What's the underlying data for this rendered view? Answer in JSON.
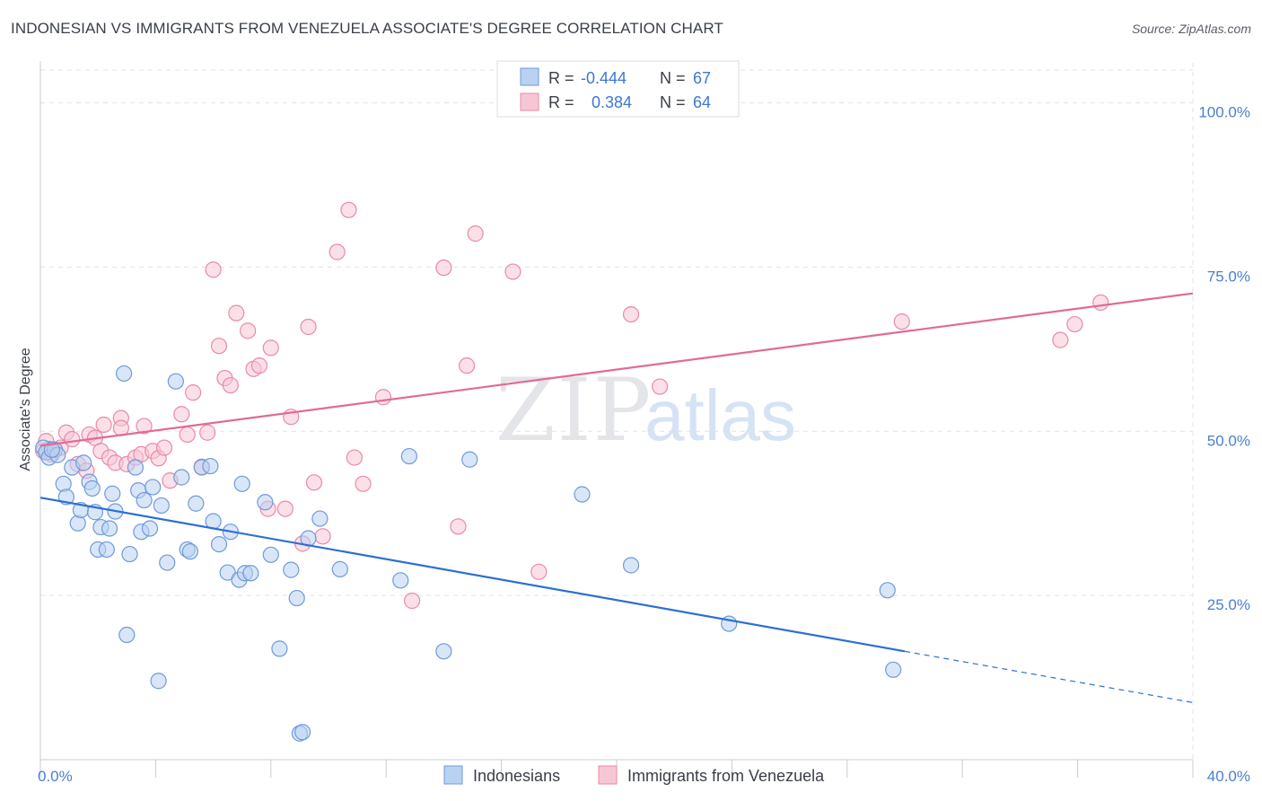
{
  "title": "INDONESIAN VS IMMIGRANTS FROM VENEZUELA ASSOCIATE'S DEGREE CORRELATION CHART",
  "source": "Source: ZipAtlas.com",
  "watermark": {
    "zip": "ZIP",
    "atlas": "atlas"
  },
  "colors": {
    "blue_fill": "#b9d2f2",
    "blue_stroke": "#6f9ad8",
    "blue_line": "#2c6fd1",
    "pink_fill": "#f7c6d5",
    "pink_stroke": "#e88aa8",
    "pink_line": "#e06b96",
    "tick_text": "#4a7fd0",
    "grid": "#dfe3e8"
  },
  "stats": [
    {
      "r_label": "R =",
      "r": "-0.444",
      "n_label": "N =",
      "n": "67",
      "color": "blue"
    },
    {
      "r_label": "R =",
      "r": "0.384",
      "n_label": "N =",
      "n": "64",
      "color": "pink"
    }
  ],
  "chart_data": {
    "type": "scatter",
    "xlabel": "",
    "ylabel": "Associate's Degree",
    "xlim": [
      0,
      40
    ],
    "ylim": [
      0,
      105
    ],
    "x_ticks": [
      {
        "v": 0,
        "label": "0.0%"
      },
      {
        "v": 40,
        "label": "40.0%"
      }
    ],
    "y_ticks": [
      {
        "v": 25,
        "label": "25.0%"
      },
      {
        "v": 50,
        "label": "50.0%"
      },
      {
        "v": 75,
        "label": "75.0%"
      },
      {
        "v": 100,
        "label": "100.0%"
      }
    ],
    "grid": true,
    "legend_position": "bottom-center",
    "series": [
      {
        "name": "Indonesians",
        "color": "blue",
        "trend": {
          "x0": 0,
          "y0": 39.9,
          "x1": 30.0,
          "y1": 16.5,
          "dash_to_x": 40.0,
          "dash_to_y": 8.7
        },
        "points": [
          [
            0.1,
            47.5
          ],
          [
            0.2,
            46.8
          ],
          [
            0.3,
            46.0
          ],
          [
            0.5,
            47.2
          ],
          [
            0.6,
            46.4
          ],
          [
            0.8,
            42.0
          ],
          [
            0.9,
            40.0
          ],
          [
            1.1,
            44.5
          ],
          [
            1.3,
            36.0
          ],
          [
            1.4,
            38.0
          ],
          [
            1.5,
            45.2
          ],
          [
            1.7,
            42.3
          ],
          [
            1.8,
            41.3
          ],
          [
            1.9,
            37.7
          ],
          [
            2.0,
            32.0
          ],
          [
            2.1,
            35.4
          ],
          [
            2.3,
            32.0
          ],
          [
            2.4,
            35.2
          ],
          [
            2.5,
            40.5
          ],
          [
            2.6,
            37.8
          ],
          [
            2.9,
            58.8
          ],
          [
            3.0,
            19.0
          ],
          [
            3.1,
            31.3
          ],
          [
            3.3,
            44.5
          ],
          [
            3.4,
            41.0
          ],
          [
            3.5,
            34.7
          ],
          [
            3.6,
            39.5
          ],
          [
            3.8,
            35.2
          ],
          [
            3.9,
            41.5
          ],
          [
            4.1,
            12.0
          ],
          [
            4.2,
            38.7
          ],
          [
            4.4,
            30.0
          ],
          [
            4.7,
            57.6
          ],
          [
            4.9,
            43.0
          ],
          [
            5.1,
            32.0
          ],
          [
            5.2,
            31.7
          ],
          [
            5.4,
            39.0
          ],
          [
            5.6,
            44.5
          ],
          [
            5.9,
            44.7
          ],
          [
            6.0,
            36.3
          ],
          [
            6.2,
            32.8
          ],
          [
            6.5,
            28.5
          ],
          [
            6.6,
            34.7
          ],
          [
            6.9,
            27.4
          ],
          [
            7.1,
            28.4
          ],
          [
            7.0,
            42.0
          ],
          [
            7.3,
            28.4
          ],
          [
            7.8,
            39.2
          ],
          [
            8.0,
            31.2
          ],
          [
            8.3,
            16.9
          ],
          [
            8.7,
            28.9
          ],
          [
            8.9,
            24.6
          ],
          [
            9.0,
            4.0
          ],
          [
            9.1,
            4.2
          ],
          [
            9.3,
            33.7
          ],
          [
            9.7,
            36.7
          ],
          [
            10.4,
            29.0
          ],
          [
            12.5,
            27.3
          ],
          [
            12.8,
            46.2
          ],
          [
            14.0,
            16.5
          ],
          [
            14.9,
            45.7
          ],
          [
            18.8,
            40.4
          ],
          [
            20.5,
            29.6
          ],
          [
            23.9,
            20.7
          ],
          [
            29.4,
            25.8
          ],
          [
            29.6,
            13.7
          ],
          [
            0.4,
            47.2
          ]
        ]
      },
      {
        "name": "Immigrants from Venezuela",
        "color": "pink",
        "trend": {
          "x0": 0,
          "y0": 47.8,
          "x1": 40.0,
          "y1": 71.0
        },
        "points": [
          [
            0.1,
            47.0
          ],
          [
            0.2,
            48.5
          ],
          [
            0.4,
            46.5
          ],
          [
            0.7,
            47.5
          ],
          [
            0.9,
            49.8
          ],
          [
            1.1,
            48.8
          ],
          [
            1.3,
            45.0
          ],
          [
            1.6,
            44.0
          ],
          [
            1.7,
            49.5
          ],
          [
            1.9,
            49.0
          ],
          [
            2.1,
            47.0
          ],
          [
            2.2,
            51.0
          ],
          [
            2.4,
            46.0
          ],
          [
            2.6,
            45.2
          ],
          [
            2.8,
            52.0
          ],
          [
            3.0,
            45.0
          ],
          [
            3.3,
            46.0
          ],
          [
            3.5,
            46.5
          ],
          [
            3.6,
            50.8
          ],
          [
            3.9,
            47.0
          ],
          [
            4.1,
            45.9
          ],
          [
            4.3,
            47.5
          ],
          [
            4.5,
            42.5
          ],
          [
            4.9,
            52.6
          ],
          [
            5.1,
            49.5
          ],
          [
            5.3,
            55.9
          ],
          [
            5.6,
            44.6
          ],
          [
            5.8,
            49.8
          ],
          [
            6.0,
            74.6
          ],
          [
            6.2,
            63.0
          ],
          [
            6.4,
            58.1
          ],
          [
            6.6,
            57.0
          ],
          [
            6.8,
            68.0
          ],
          [
            7.2,
            65.3
          ],
          [
            7.4,
            59.5
          ],
          [
            7.6,
            60.0
          ],
          [
            7.9,
            38.2
          ],
          [
            8.0,
            62.7
          ],
          [
            8.5,
            38.2
          ],
          [
            8.7,
            52.2
          ],
          [
            9.1,
            32.9
          ],
          [
            9.3,
            65.9
          ],
          [
            9.5,
            42.2
          ],
          [
            9.8,
            34.0
          ],
          [
            10.3,
            77.3
          ],
          [
            10.7,
            83.7
          ],
          [
            10.9,
            46.0
          ],
          [
            11.2,
            42.0
          ],
          [
            11.9,
            55.2
          ],
          [
            12.9,
            24.2
          ],
          [
            14.0,
            74.9
          ],
          [
            14.5,
            35.5
          ],
          [
            14.8,
            60.0
          ],
          [
            15.1,
            80.1
          ],
          [
            16.4,
            74.3
          ],
          [
            17.3,
            28.6
          ],
          [
            20.5,
            67.8
          ],
          [
            21.5,
            56.8
          ],
          [
            29.9,
            66.7
          ],
          [
            35.4,
            63.9
          ],
          [
            35.9,
            66.3
          ],
          [
            36.8,
            69.6
          ],
          [
            0.3,
            47.3
          ],
          [
            2.8,
            50.5
          ]
        ]
      }
    ]
  }
}
